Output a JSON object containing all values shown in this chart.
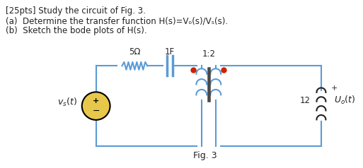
{
  "bg_color": "#ffffff",
  "line1": "[25pts] Study the circuit of Fig. 3.",
  "line2": "(a)  Determine the transfer function H(s)=Vₒ(s)/Vₛ(s).",
  "line3": "(b)  Sketch the bode plots of H(s).",
  "fig_label": "Fig. 3",
  "resistor_label": "5Ω",
  "cap_label": "1F",
  "ratio_label": "1:2",
  "ind_label": "12",
  "uo_label": "Uₒ(t)",
  "vs_label": "vₛ(t)",
  "text_color": "#222222",
  "wire_color": "#5b9bd5",
  "dot_color": "#cc2200",
  "src_fill": "#e8c84a",
  "core_color": "#444444"
}
